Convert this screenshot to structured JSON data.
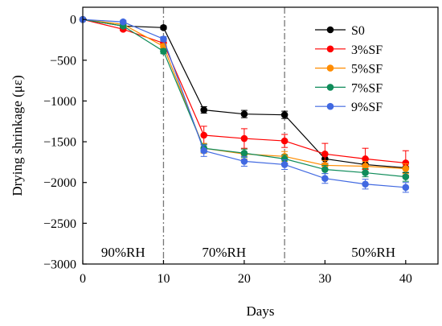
{
  "chart_data": {
    "type": "line",
    "title": "",
    "xlabel": "Days",
    "ylabel": "Drying shrinkage (με)",
    "xlim": [
      0,
      44
    ],
    "ylim": [
      -3000,
      150
    ],
    "xticks": [
      0,
      10,
      20,
      30,
      40
    ],
    "yticks": [
      0,
      -500,
      -1000,
      -1500,
      -2000,
      -2500,
      -3000
    ],
    "x": [
      0,
      5,
      10,
      15,
      20,
      25,
      30,
      35,
      40
    ],
    "legend_position": "top-right",
    "stage_dividers": [
      10,
      25
    ],
    "stage_labels": [
      {
        "text": "90%RH",
        "x": 5
      },
      {
        "text": "70%RH",
        "x": 17.5
      },
      {
        "text": "50%RH",
        "x": 36
      }
    ],
    "series": [
      {
        "name": "S0",
        "color": "#000000",
        "values": [
          0,
          -80,
          -100,
          -1110,
          -1160,
          -1170,
          -1710,
          -1780,
          -1820
        ],
        "errors": [
          0,
          20,
          20,
          40,
          45,
          45,
          55,
          60,
          60
        ]
      },
      {
        "name": "3%SF",
        "color": "#ff0000",
        "values": [
          0,
          -120,
          -290,
          -1420,
          -1460,
          -1490,
          -1650,
          -1710,
          -1760
        ],
        "errors": [
          0,
          20,
          30,
          110,
          120,
          80,
          130,
          130,
          150
        ]
      },
      {
        "name": "5%SF",
        "color": "#ff8c00",
        "values": [
          0,
          -60,
          -330,
          -1580,
          -1650,
          -1680,
          -1790,
          -1800,
          -1830
        ],
        "errors": [
          0,
          20,
          30,
          60,
          60,
          60,
          60,
          60,
          60
        ]
      },
      {
        "name": "7%SF",
        "color": "#0f8c5a",
        "values": [
          0,
          -80,
          -390,
          -1580,
          -1640,
          -1710,
          -1840,
          -1880,
          -1930
        ],
        "errors": [
          0,
          20,
          30,
          50,
          50,
          50,
          50,
          50,
          55
        ]
      },
      {
        "name": "9%SF",
        "color": "#4169e1",
        "values": [
          0,
          -30,
          -240,
          -1610,
          -1740,
          -1780,
          -1950,
          -2020,
          -2060
        ],
        "errors": [
          0,
          20,
          30,
          70,
          60,
          60,
          60,
          60,
          60
        ]
      }
    ]
  }
}
